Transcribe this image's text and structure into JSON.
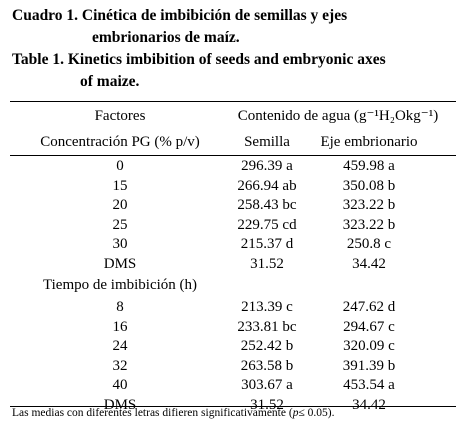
{
  "title": {
    "es": [
      "Cuadro 1. Cinética de imbibición de semillas y ejes",
      "embrionarios de maíz."
    ],
    "en": [
      "Table 1. Kinetics imbibition of seeds and embryonic axes",
      "of maize."
    ]
  },
  "table": {
    "header": {
      "factor": "Factores",
      "group": "Contenido de agua (g⁻¹H₂Okg⁻¹)",
      "columns": [
        "Concentración PG (% p/v)",
        "Semilla",
        "Eje embrionario"
      ]
    },
    "rows": [
      [
        "0",
        "296.39 a",
        "459.98 a"
      ],
      [
        "15",
        "266.94 ab",
        "350.08 b"
      ],
      [
        "20",
        "258.43 bc",
        "323.22 b"
      ],
      [
        "25",
        "229.75 cd",
        "323.22 b"
      ],
      [
        "30",
        "215.37 d",
        "250.8 c"
      ],
      [
        "DMS",
        "31.52",
        "34.42"
      ]
    ],
    "section": "Tiempo de imbibición (h)",
    "rows2": [
      [
        "8",
        "213.39 c",
        "247.62 d"
      ],
      [
        "16",
        "233.81 bc",
        "294.67 c"
      ],
      [
        "24",
        "252.42 b",
        "320.09 c"
      ],
      [
        "32",
        "263.58 b",
        "391.39 b"
      ],
      [
        "40",
        "303.67 a",
        "453.54 a"
      ],
      [
        "DMS",
        "31.52",
        "34.42"
      ]
    ]
  },
  "footnote": [
    "Las medias con diferentes letras difieren significativamente (",
    "p",
    "≤ 0.05)."
  ]
}
